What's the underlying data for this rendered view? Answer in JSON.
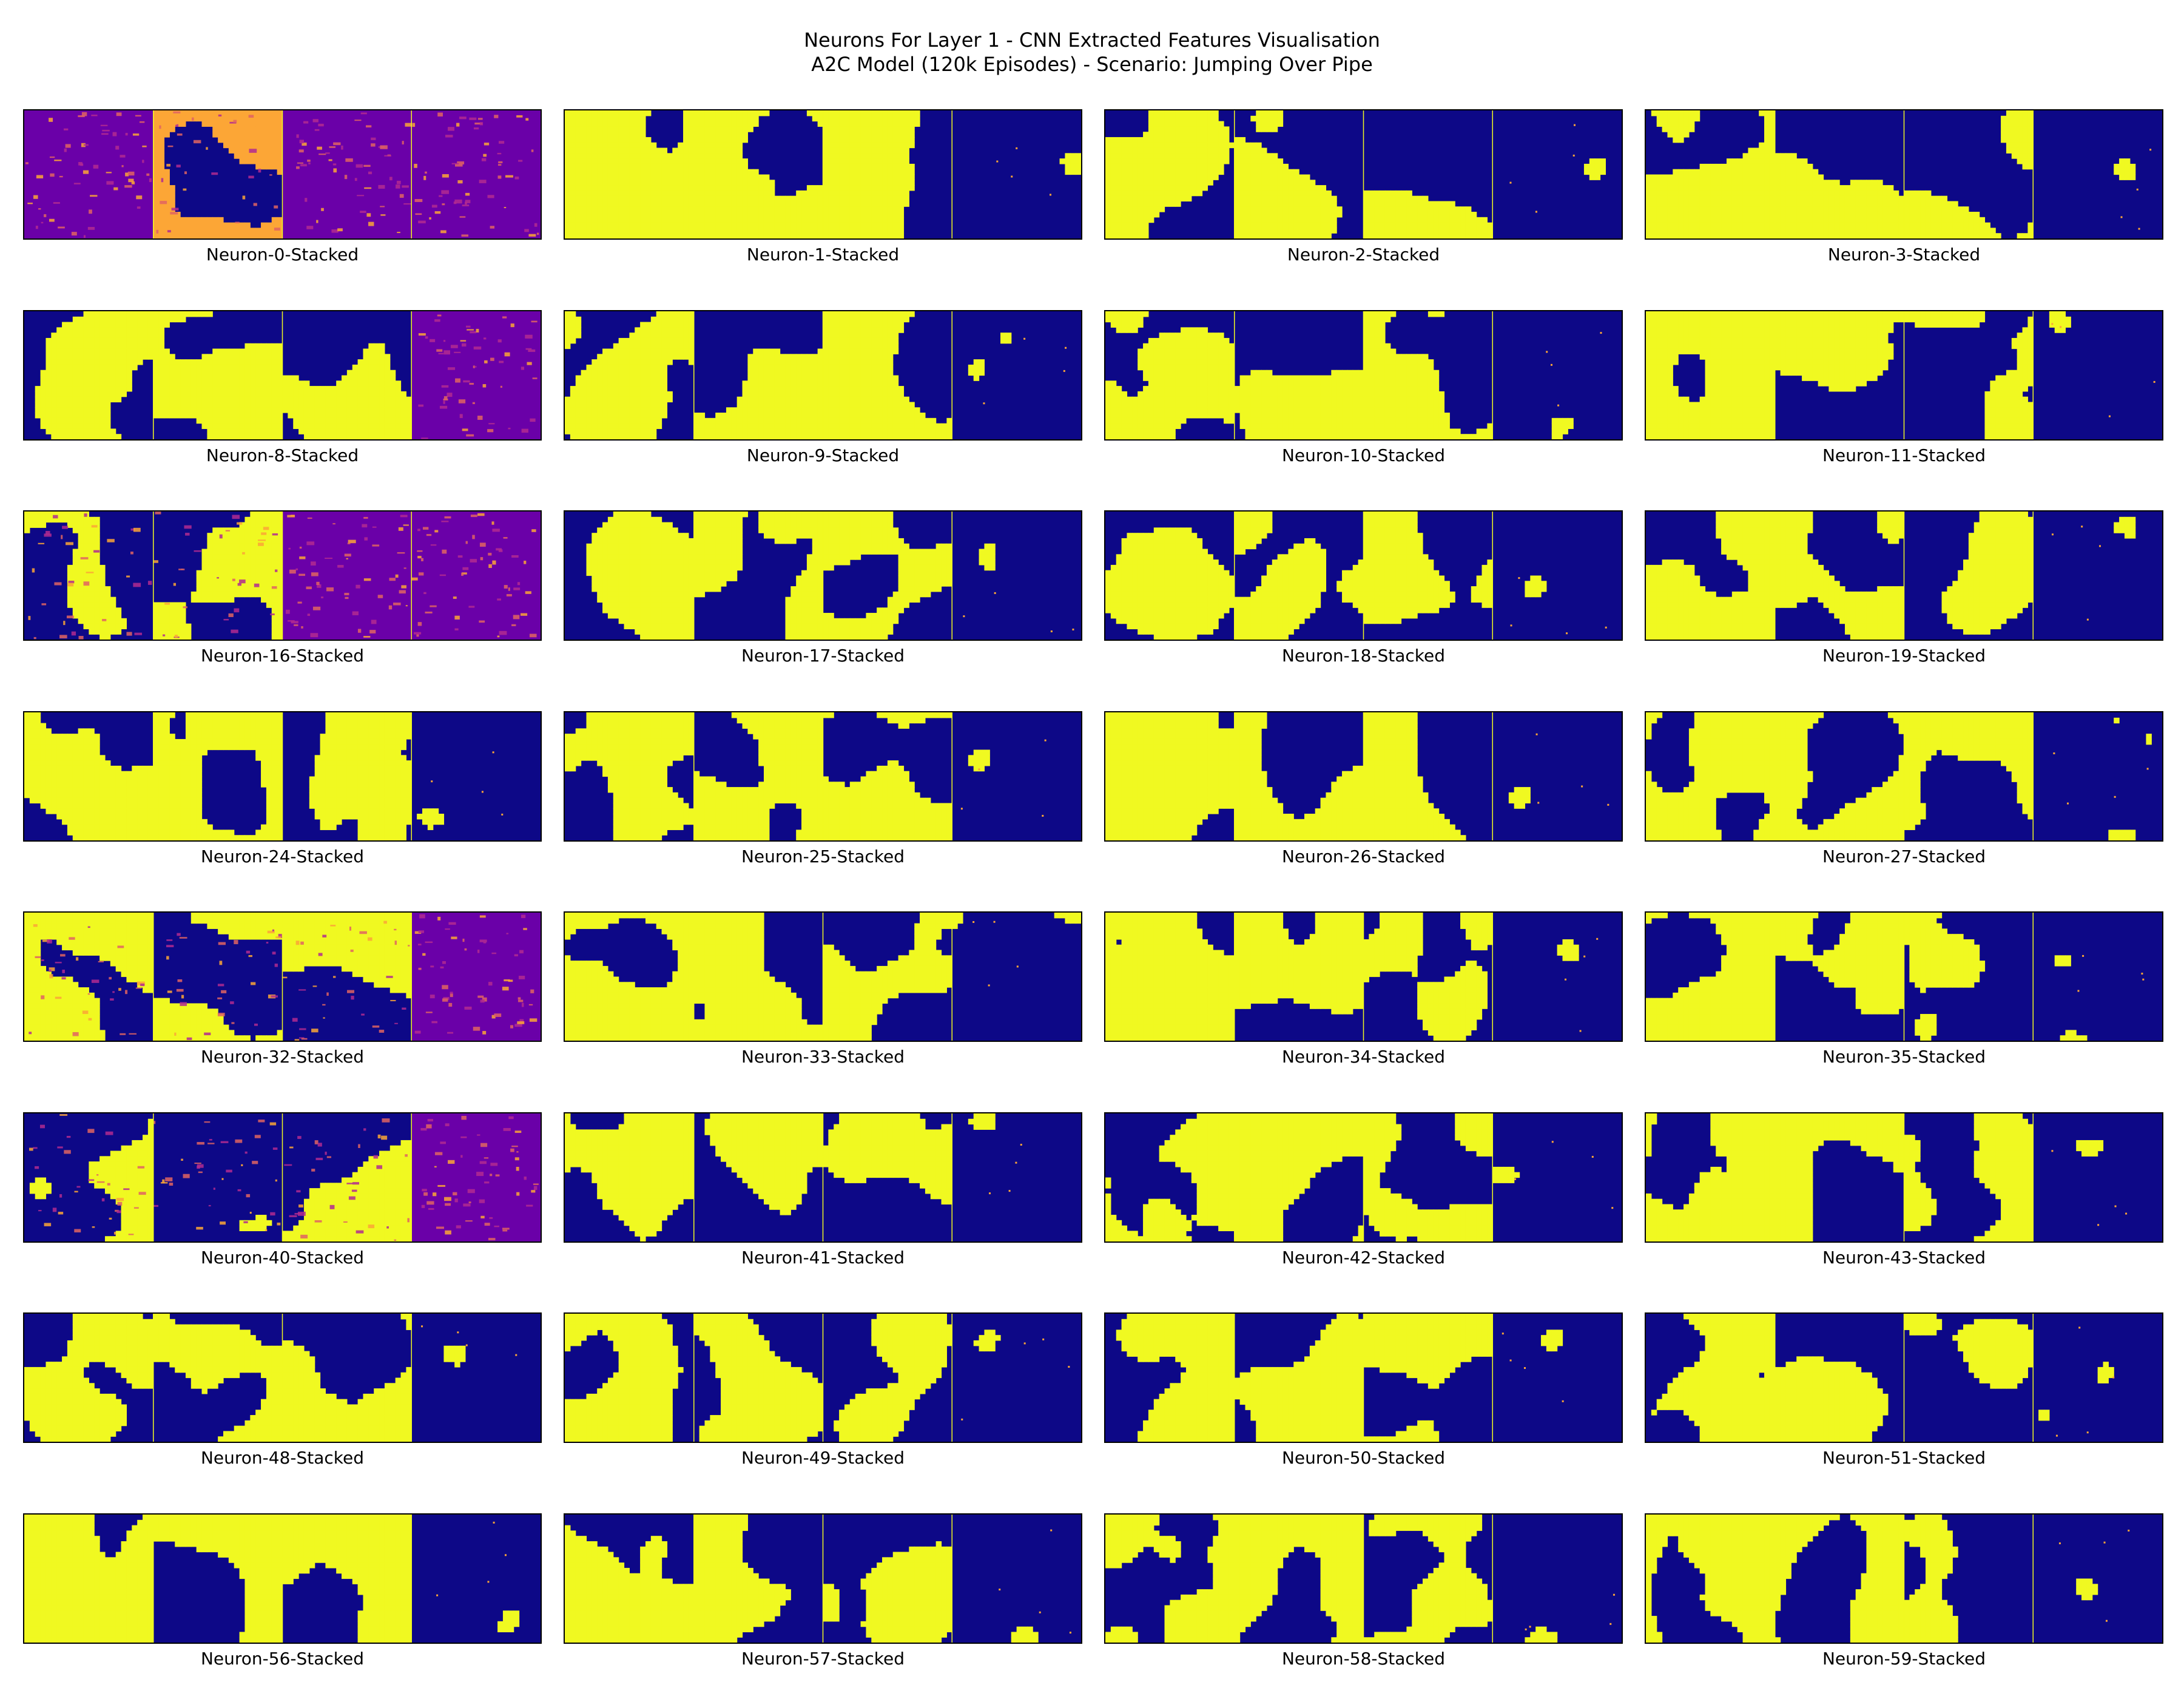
{
  "figure": {
    "title_line1": "Neurons For Layer 1 - CNN Extracted Features Visualisation",
    "title_line2": "A2C Model (120k Episodes) - Scenario: Jumping Over Pipe"
  },
  "colormap": {
    "name": "plasma",
    "low": "#0d0887",
    "mid_purple": "#6a00a8",
    "mid_magenta": "#b12a90",
    "mid_orange": "#e16462",
    "high_orange": "#fca636",
    "high": "#f0f921"
  },
  "grid": {
    "rows": 8,
    "columns": 4,
    "frames_per_panel": 4
  },
  "panels": [
    {
      "label": "Neuron-0-Stacked",
      "style": "texture",
      "frames": [
        "purple",
        "orange",
        "purple",
        "purple"
      ]
    },
    {
      "label": "Neuron-1-Stacked",
      "style": "binary",
      "frames": [
        "yellow",
        "mixed-yellow",
        "mixed-yellow",
        "blue"
      ]
    },
    {
      "label": "Neuron-2-Stacked",
      "style": "binary",
      "frames": [
        "mixed-yellow",
        "mixed",
        "mixed-blue",
        "blue"
      ]
    },
    {
      "label": "Neuron-3-Stacked",
      "style": "binary",
      "frames": [
        "mixed-yellow",
        "mixed",
        "mixed-blue",
        "blue"
      ]
    },
    {
      "label": "Neuron-8-Stacked",
      "style": "binary",
      "frames": [
        "mixed-yellow",
        "mixed-yellow",
        "mixed",
        "purple"
      ]
    },
    {
      "label": "Neuron-9-Stacked",
      "style": "binary",
      "frames": [
        "mixed-yellow",
        "mixed",
        "mixed-yellow",
        "blue"
      ]
    },
    {
      "label": "Neuron-10-Stacked",
      "style": "binary",
      "frames": [
        "mixed-yellow",
        "mixed",
        "mixed",
        "blue"
      ]
    },
    {
      "label": "Neuron-11-Stacked",
      "style": "binary",
      "frames": [
        "yellow",
        "mixed",
        "mixed-blue",
        "blue"
      ]
    },
    {
      "label": "Neuron-16-Stacked",
      "style": "texture",
      "frames": [
        "mixed-blue",
        "mixed",
        "purple",
        "purple"
      ]
    },
    {
      "label": "Neuron-17-Stacked",
      "style": "binary",
      "frames": [
        "mixed-yellow",
        "mixed",
        "mixed",
        "blue"
      ]
    },
    {
      "label": "Neuron-18-Stacked",
      "style": "binary",
      "frames": [
        "mixed-yellow",
        "mixed",
        "mixed",
        "blue"
      ]
    },
    {
      "label": "Neuron-19-Stacked",
      "style": "binary",
      "frames": [
        "mixed-yellow",
        "mixed",
        "mixed",
        "blue"
      ]
    },
    {
      "label": "Neuron-24-Stacked",
      "style": "binary",
      "frames": [
        "mixed-yellow",
        "mixed-yellow",
        "mixed-yellow",
        "blue"
      ]
    },
    {
      "label": "Neuron-25-Stacked",
      "style": "binary",
      "frames": [
        "mixed-yellow",
        "mixed-yellow",
        "mixed",
        "blue"
      ]
    },
    {
      "label": "Neuron-26-Stacked",
      "style": "binary",
      "frames": [
        "yellow",
        "mixed",
        "mixed",
        "blue"
      ]
    },
    {
      "label": "Neuron-27-Stacked",
      "style": "binary",
      "frames": [
        "mixed-yellow",
        "mixed",
        "mixed",
        "blue"
      ]
    },
    {
      "label": "Neuron-32-Stacked",
      "style": "texture",
      "frames": [
        "mixed-yellow",
        "mixed-blue",
        "mixed",
        "purple"
      ]
    },
    {
      "label": "Neuron-33-Stacked",
      "style": "binary",
      "frames": [
        "mixed-yellow",
        "mixed-yellow",
        "mixed",
        "blue"
      ]
    },
    {
      "label": "Neuron-34-Stacked",
      "style": "binary",
      "frames": [
        "yellow",
        "mixed-yellow",
        "mixed",
        "blue"
      ]
    },
    {
      "label": "Neuron-35-Stacked",
      "style": "binary",
      "frames": [
        "mixed-yellow",
        "mixed",
        "mixed-blue",
        "blue"
      ]
    },
    {
      "label": "Neuron-40-Stacked",
      "style": "texture",
      "frames": [
        "mixed-blue",
        "blue",
        "mixed",
        "purple"
      ]
    },
    {
      "label": "Neuron-41-Stacked",
      "style": "binary",
      "frames": [
        "mixed-yellow",
        "mixed",
        "mixed",
        "blue"
      ]
    },
    {
      "label": "Neuron-42-Stacked",
      "style": "binary",
      "frames": [
        "mixed",
        "mixed-yellow",
        "mixed",
        "blue"
      ]
    },
    {
      "label": "Neuron-43-Stacked",
      "style": "binary",
      "frames": [
        "mixed-yellow",
        "mixed",
        "mixed",
        "blue"
      ]
    },
    {
      "label": "Neuron-48-Stacked",
      "style": "binary",
      "frames": [
        "mixed-yellow",
        "mixed",
        "mixed",
        "blue"
      ]
    },
    {
      "label": "Neuron-49-Stacked",
      "style": "binary",
      "frames": [
        "mixed-yellow",
        "mixed-yellow",
        "mixed",
        "blue"
      ]
    },
    {
      "label": "Neuron-50-Stacked",
      "style": "binary",
      "frames": [
        "mixed-yellow",
        "mixed-yellow",
        "mixed",
        "blue"
      ]
    },
    {
      "label": "Neuron-51-Stacked",
      "style": "binary",
      "frames": [
        "mixed-yellow",
        "mixed",
        "mixed-blue",
        "blue"
      ]
    },
    {
      "label": "Neuron-56-Stacked",
      "style": "binary",
      "frames": [
        "yellow",
        "mixed",
        "mixed-yellow",
        "blue"
      ]
    },
    {
      "label": "Neuron-57-Stacked",
      "style": "binary",
      "frames": [
        "mixed-yellow",
        "mixed",
        "mixed",
        "blue"
      ]
    },
    {
      "label": "Neuron-58-Stacked",
      "style": "binary",
      "frames": [
        "mixed",
        "mixed-yellow",
        "mixed",
        "blue"
      ]
    },
    {
      "label": "Neuron-59-Stacked",
      "style": "binary",
      "frames": [
        "mixed-yellow",
        "mixed",
        "mixed-blue",
        "blue"
      ]
    }
  ]
}
